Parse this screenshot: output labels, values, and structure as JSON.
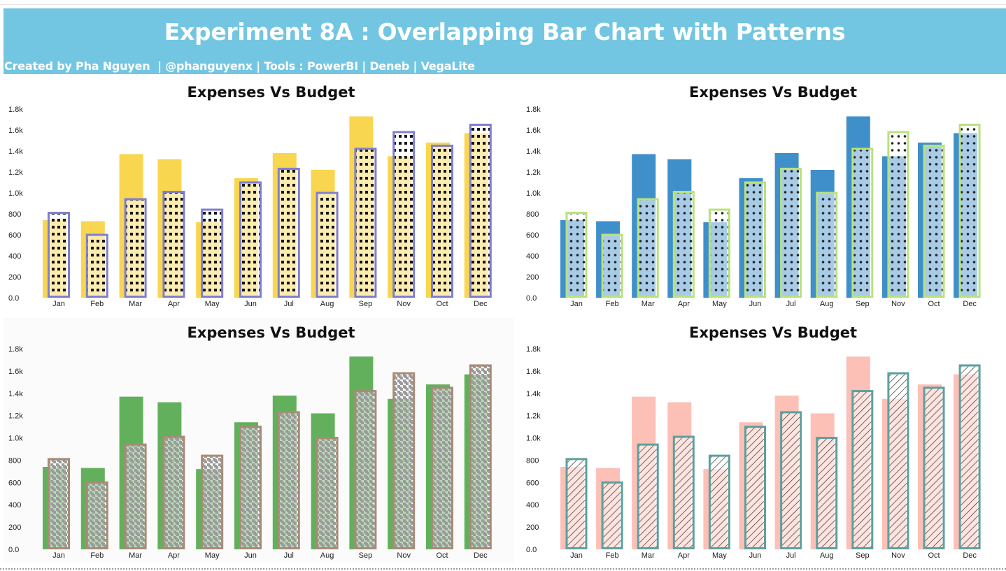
{
  "header": {
    "title": "Experiment 8A :  Overlapping Bar Chart with Patterns",
    "subtitle": "Created by Pha Nguyen  | @phanguyenx | Tools : PowerBI | Deneb | VegaLite",
    "background": "#73c6e2"
  },
  "chart_data": [
    {
      "type": "bar",
      "title": "Expenses Vs Budget",
      "categories": [
        "Jan",
        "Feb",
        "Mar",
        "Apr",
        "May",
        "Jun",
        "Jul",
        "Aug",
        "Sep",
        "Nov",
        "Oct",
        "Dec"
      ],
      "ylim": [
        0,
        1800
      ],
      "yticks": [
        "0.0",
        "200",
        "400",
        "600",
        "800",
        "1.0k",
        "1.2k",
        "1.4k",
        "1.6k",
        "1.8k"
      ],
      "legend": "none",
      "series": [
        {
          "role": "expenses",
          "values": [
            740,
            730,
            1370,
            1320,
            720,
            1140,
            1380,
            1220,
            1730,
            1350,
            1480,
            1570
          ],
          "color": "#f9d64f"
        },
        {
          "role": "budget",
          "values": [
            810,
            600,
            940,
            1010,
            840,
            1100,
            1230,
            1000,
            1420,
            1580,
            1450,
            1650
          ],
          "border": "#7f7fce",
          "pattern": "squares",
          "pattern_color": "#111111"
        }
      ]
    },
    {
      "type": "bar",
      "title": "Expenses Vs Budget",
      "categories": [
        "Jan",
        "Feb",
        "Mar",
        "Apr",
        "May",
        "Jun",
        "Jul",
        "Aug",
        "Sep",
        "Nov",
        "Oct",
        "Dec"
      ],
      "ylim": [
        0,
        1800
      ],
      "yticks": [
        "0.0",
        "200",
        "400",
        "600",
        "800",
        "1.0k",
        "1.2k",
        "1.4k",
        "1.6k",
        "1.8k"
      ],
      "legend": "none",
      "series": [
        {
          "role": "expenses",
          "values": [
            740,
            730,
            1370,
            1320,
            720,
            1140,
            1380,
            1220,
            1730,
            1350,
            1480,
            1570
          ],
          "color": "#3f8fcb"
        },
        {
          "role": "budget",
          "values": [
            810,
            600,
            940,
            1010,
            840,
            1100,
            1230,
            1000,
            1420,
            1580,
            1450,
            1650
          ],
          "border": "#b9e27d",
          "pattern": "dots",
          "pattern_color": "#222222"
        }
      ]
    },
    {
      "type": "bar",
      "title": "Expenses Vs Budget",
      "categories": [
        "Jan",
        "Feb",
        "Mar",
        "Apr",
        "May",
        "Jun",
        "Jul",
        "Aug",
        "Sep",
        "Nov",
        "Oct",
        "Dec"
      ],
      "ylim": [
        0,
        1800
      ],
      "yticks": [
        "0.0",
        "200",
        "400",
        "600",
        "800",
        "1.0k",
        "1.2k",
        "1.4k",
        "1.6k",
        "1.8k"
      ],
      "legend": "none",
      "series": [
        {
          "role": "expenses",
          "values": [
            740,
            730,
            1370,
            1320,
            720,
            1140,
            1380,
            1220,
            1730,
            1350,
            1480,
            1570
          ],
          "color": "#62b05b"
        },
        {
          "role": "budget",
          "values": [
            810,
            600,
            940,
            1010,
            840,
            1100,
            1230,
            1000,
            1420,
            1580,
            1450,
            1650
          ],
          "border": "#a88b76",
          "pattern": "houndstooth",
          "pattern_color": "#9b9b9b"
        }
      ]
    },
    {
      "type": "bar",
      "title": "Expenses Vs Budget",
      "categories": [
        "Jan",
        "Feb",
        "Mar",
        "Apr",
        "May",
        "Jun",
        "Jul",
        "Aug",
        "Sep",
        "Nov",
        "Oct",
        "Dec"
      ],
      "ylim": [
        0,
        1800
      ],
      "yticks": [
        "0.0",
        "200",
        "400",
        "600",
        "800",
        "1.0k",
        "1.2k",
        "1.4k",
        "1.6k",
        "1.8k"
      ],
      "legend": "none",
      "series": [
        {
          "role": "expenses",
          "values": [
            740,
            730,
            1370,
            1320,
            720,
            1140,
            1380,
            1220,
            1730,
            1350,
            1480,
            1570
          ],
          "color": "#fcc0b7"
        },
        {
          "role": "budget",
          "values": [
            810,
            600,
            940,
            1010,
            840,
            1100,
            1230,
            1000,
            1420,
            1580,
            1450,
            1650
          ],
          "border": "#5da09e",
          "pattern": "diagonal",
          "pattern_color": "#333333"
        }
      ]
    }
  ]
}
